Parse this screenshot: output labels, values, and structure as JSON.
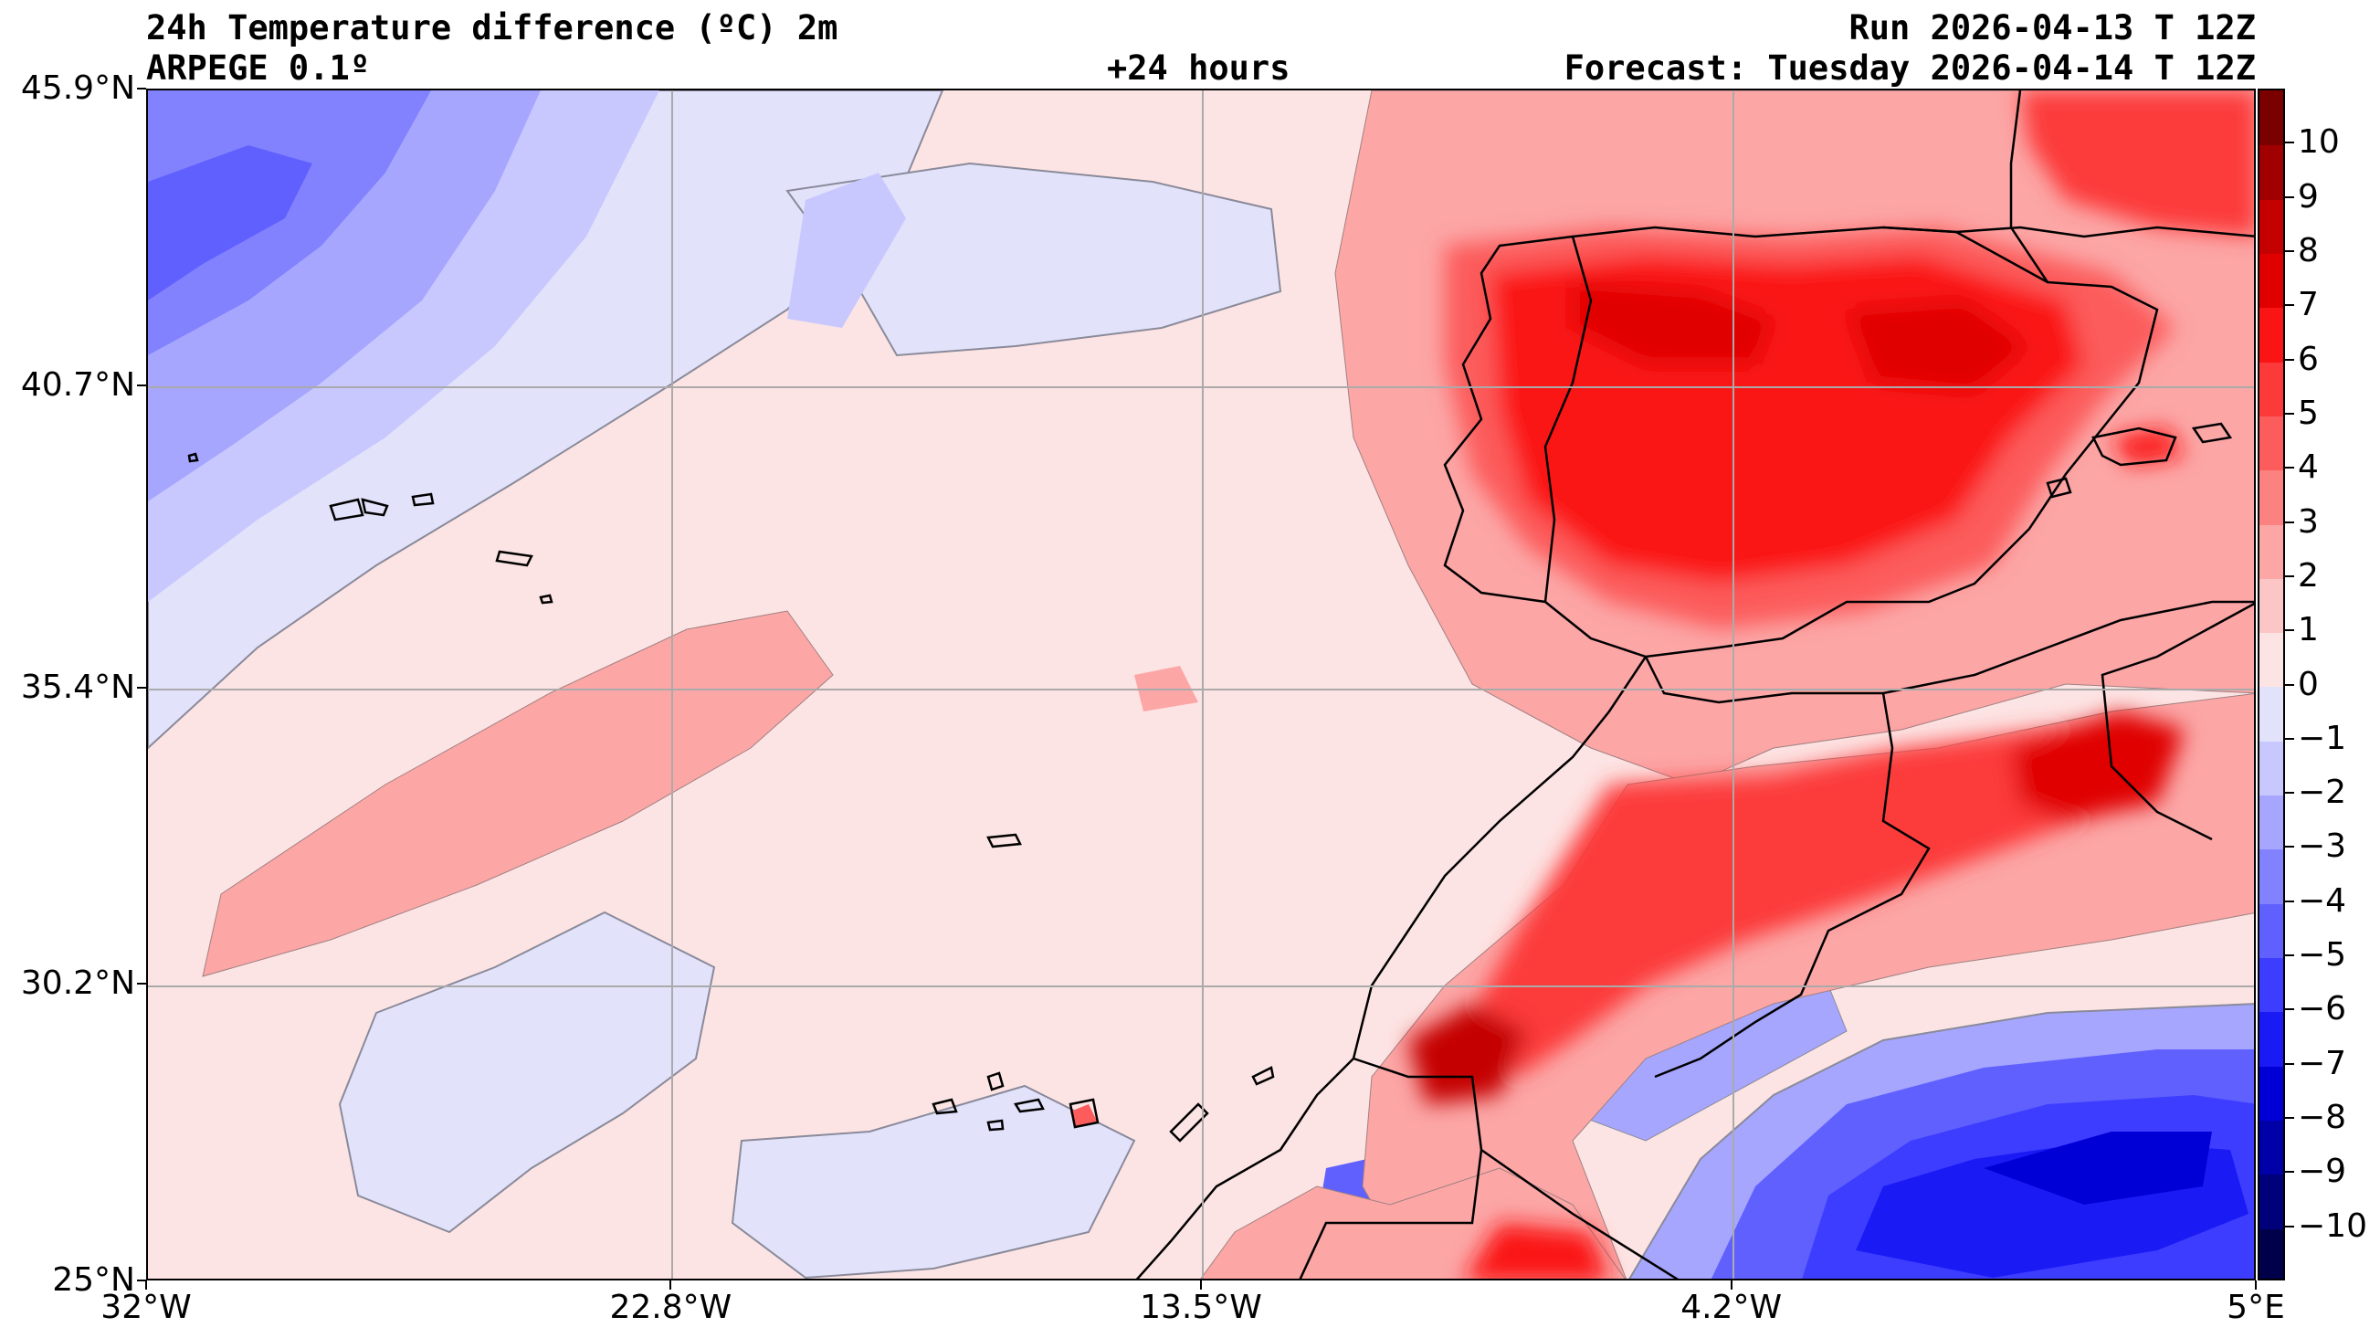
{
  "header": {
    "title": "24h Temperature difference (ºC) 2m",
    "model": "ARPEGE 0.1º",
    "lead": "+24 hours",
    "run": "Run 2026-04-13 T 12Z",
    "forecast": "Forecast: Tuesday 2026-04-14 T 12Z"
  },
  "axes": {
    "lat_labels": [
      "45.9°N",
      "40.7°N",
      "35.4°N",
      "30.2°N",
      "25°N"
    ],
    "lon_labels": [
      "32°W",
      "22.8°W",
      "13.5°W",
      "4.2°W",
      "5°E"
    ],
    "lat_range": [
      25.0,
      45.9
    ],
    "lon_range": [
      -32.0,
      5.0
    ],
    "lat_values": [
      45.9,
      40.7,
      35.4,
      30.2,
      25.0
    ],
    "lon_values": [
      -32.0,
      -22.8,
      -13.5,
      -4.2,
      5.0
    ]
  },
  "colorbar": {
    "min": -11,
    "max": 11,
    "tick_values": [
      10,
      9,
      8,
      7,
      6,
      5,
      4,
      3,
      2,
      1,
      0,
      -1,
      -2,
      -3,
      -4,
      -5,
      -6,
      -7,
      -8,
      -9,
      -10
    ],
    "tick_labels": [
      "10",
      "9",
      "8",
      "7",
      "6",
      "5",
      "4",
      "3",
      "2",
      "1",
      "0",
      "−1",
      "−2",
      "−3",
      "−4",
      "−5",
      "−6",
      "−7",
      "−8",
      "−9",
      "−10"
    ],
    "colors": [
      "#00004a",
      "#00007a",
      "#0000a8",
      "#0000d6",
      "#1a1af5",
      "#3d3dff",
      "#6060ff",
      "#8282ff",
      "#a6a6ff",
      "#c8c8ff",
      "#e2e2fb",
      "#fde4e4",
      "#fcc6c6",
      "#fca6a6",
      "#fc8282",
      "#fc5c5c",
      "#fc3a3a",
      "#fb1414",
      "#e00000",
      "#c40000",
      "#a00000",
      "#7a0000"
    ]
  }
}
